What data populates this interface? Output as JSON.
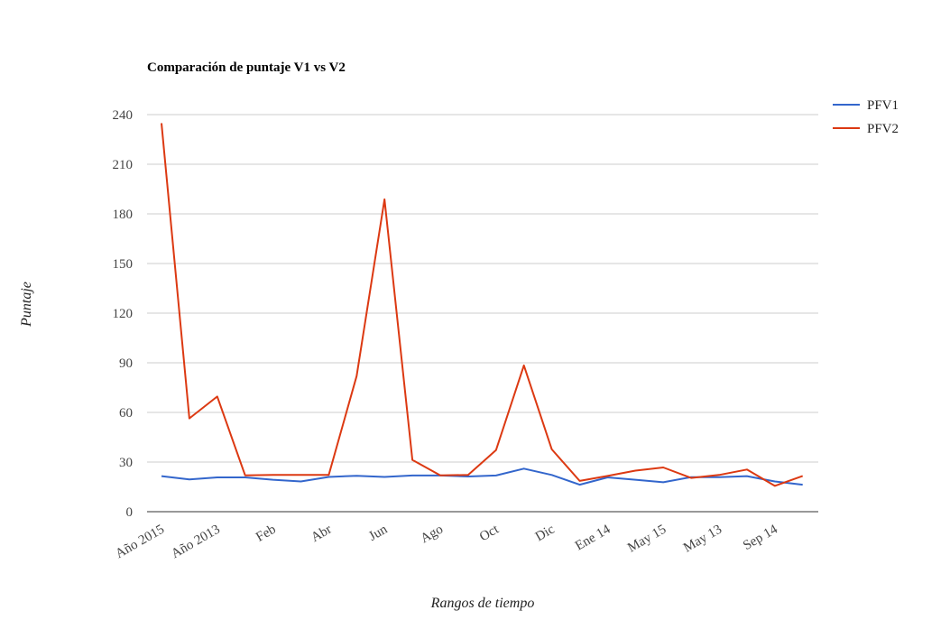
{
  "chart_data": {
    "type": "line",
    "title": "Comparación de puntaje V1 vs V2",
    "xlabel": "Rangos de tiempo",
    "ylabel": "Puntaje",
    "ylim": [
      0,
      240
    ],
    "yticks": [
      0,
      30,
      60,
      90,
      120,
      150,
      180,
      210,
      240
    ],
    "grid": true,
    "legend_position": "right",
    "x_tick_labels": [
      {
        "index": 0,
        "label": "Año 2015"
      },
      {
        "index": 2,
        "label": "Año 2013"
      },
      {
        "index": 4,
        "label": "Feb"
      },
      {
        "index": 6,
        "label": "Abr"
      },
      {
        "index": 8,
        "label": "Jun"
      },
      {
        "index": 10,
        "label": "Ago"
      },
      {
        "index": 12,
        "label": "Oct"
      },
      {
        "index": 14,
        "label": "Dic"
      },
      {
        "index": 16,
        "label": "Ene 14"
      },
      {
        "index": 18,
        "label": "May 15"
      },
      {
        "index": 20,
        "label": "May 13"
      },
      {
        "index": 22,
        "label": "Sep 14"
      }
    ],
    "series": [
      {
        "name": "PFV1",
        "color": "#3366cc",
        "values": [
          21.5,
          19.5,
          20.7,
          20.7,
          19.3,
          18.3,
          21.0,
          21.7,
          21.0,
          21.9,
          21.9,
          21.3,
          21.9,
          26.0,
          22.2,
          16.3,
          20.7,
          19.3,
          17.8,
          20.9,
          20.9,
          21.5,
          18.3,
          16.3
        ]
      },
      {
        "name": "PFV2",
        "color": "#dc3912",
        "values": [
          234.8,
          56.4,
          69.6,
          22.0,
          22.2,
          22.2,
          22.2,
          82.0,
          188.8,
          31.3,
          22.0,
          22.2,
          37.2,
          88.4,
          37.7,
          18.6,
          21.6,
          24.8,
          26.7,
          20.4,
          22.2,
          25.5,
          15.6,
          21.6
        ]
      }
    ]
  }
}
